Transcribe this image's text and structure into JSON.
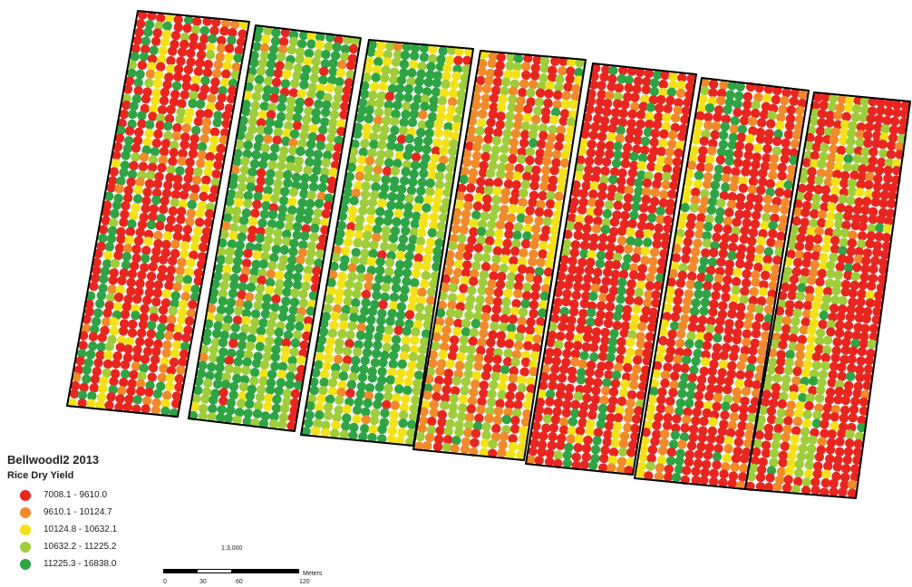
{
  "map": {
    "title": "Bellwoodl2 2013",
    "subtitle": "Rice Dry Yield"
  },
  "legend": [
    {
      "label": "7008.1 - 9610.0",
      "color": "#e8261f"
    },
    {
      "label": "9610.1 - 10124.7",
      "color": "#f08a2a"
    },
    {
      "label": "10124.8 - 10632.1",
      "color": "#f3e21a"
    },
    {
      "label": "10632.2 - 11225.2",
      "color": "#9fcd3b"
    },
    {
      "label": "11225.3 - 16838.0",
      "color": "#2ea444"
    }
  ],
  "scale": {
    "ratio": "1:3,000",
    "unit": "Meters",
    "ticks": [
      "0",
      "30",
      "60",
      "120"
    ]
  },
  "fields": [
    {
      "mix": [
        0.45,
        0.12,
        0.1,
        0.13,
        0.2
      ]
    },
    {
      "mix": [
        0.1,
        0.08,
        0.12,
        0.25,
        0.45
      ]
    },
    {
      "mix": [
        0.08,
        0.1,
        0.15,
        0.3,
        0.37
      ]
    },
    {
      "mix": [
        0.3,
        0.18,
        0.2,
        0.2,
        0.12
      ]
    },
    {
      "mix": [
        0.62,
        0.12,
        0.1,
        0.08,
        0.08
      ]
    },
    {
      "mix": [
        0.55,
        0.14,
        0.12,
        0.1,
        0.09
      ]
    },
    {
      "mix": [
        0.66,
        0.1,
        0.1,
        0.07,
        0.07
      ]
    }
  ]
}
